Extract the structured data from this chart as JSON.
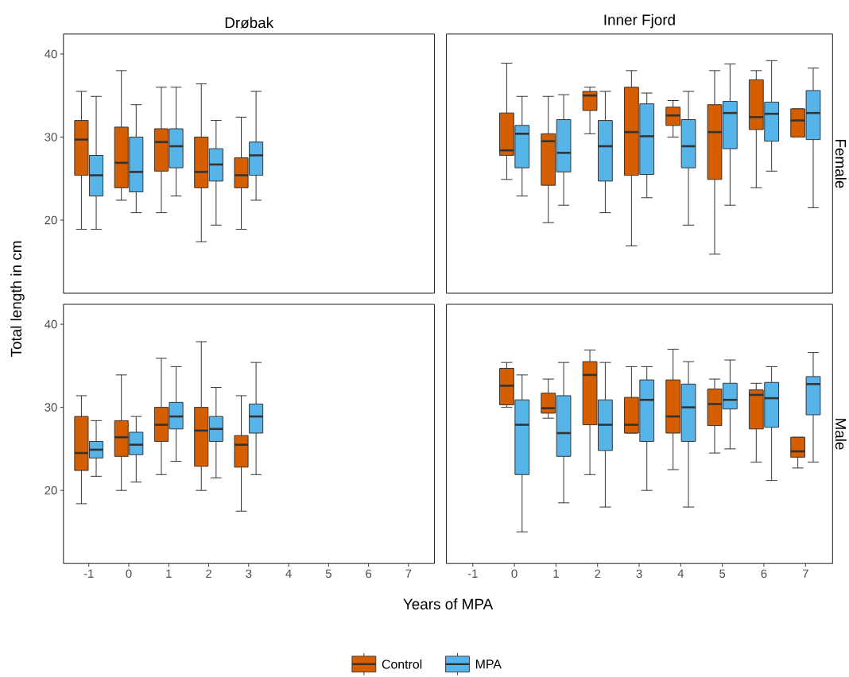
{
  "chart_data": [
    {
      "type": "box",
      "title": "Drøbak",
      "ylabel": "Total length in cm",
      "legend": "bottom",
      "categories": [
        "-1",
        "0",
        "1",
        "2",
        "3",
        "4",
        "5",
        "6",
        "7"
      ],
      "ylim": [
        11.2,
        42.4
      ],
      "yticks": [
        20,
        30,
        40
      ],
      "tick_labels": "y",
      "series": [
        {
          "name": "Control",
          "color": "#d55e00",
          "boxes": [
            {
              "low": 18.9,
              "q1": 25.4,
              "median": 29.7,
              "q3": 32.0,
              "high": 35.5
            },
            {
              "low": 22.4,
              "q1": 23.9,
              "median": 26.9,
              "q3": 31.2,
              "high": 38.0
            },
            {
              "low": 20.9,
              "q1": 25.9,
              "median": 29.4,
              "q3": 31.0,
              "high": 36.0
            },
            {
              "low": 17.4,
              "q1": 23.9,
              "median": 25.8,
              "q3": 30.0,
              "high": 36.4
            },
            {
              "low": 18.9,
              "q1": 23.9,
              "median": 25.4,
              "q3": 27.5,
              "high": 32.4
            },
            null,
            null,
            null,
            null
          ]
        },
        {
          "name": "MPA",
          "color": "#56b4e9",
          "boxes": [
            {
              "low": 18.9,
              "q1": 22.9,
              "median": 25.4,
              "q3": 27.8,
              "high": 34.9
            },
            {
              "low": 20.9,
              "q1": 23.4,
              "median": 25.8,
              "q3": 30.0,
              "high": 33.9
            },
            {
              "low": 22.9,
              "q1": 26.3,
              "median": 28.9,
              "q3": 31.0,
              "high": 36.0
            },
            {
              "low": 19.4,
              "q1": 24.7,
              "median": 26.7,
              "q3": 28.6,
              "high": 32.0
            },
            {
              "low": 22.4,
              "q1": 25.4,
              "median": 27.8,
              "q3": 29.4,
              "high": 35.5
            },
            null,
            null,
            null,
            null
          ]
        }
      ]
    },
    {
      "type": "box",
      "title": "Inner Fjord",
      "y2label": "Female",
      "categories": [
        "-1",
        "0",
        "1",
        "2",
        "3",
        "4",
        "5",
        "6",
        "7"
      ],
      "ylim": [
        11.2,
        42.4
      ],
      "tick_labels": false,
      "series": [
        {
          "color": "#d55e00",
          "boxes": [
            null,
            {
              "low": 24.9,
              "q1": 27.8,
              "median": 28.4,
              "q3": 32.9,
              "high": 38.9
            },
            {
              "low": 19.7,
              "q1": 24.2,
              "median": 29.5,
              "q3": 30.4,
              "high": 34.9
            },
            {
              "low": 30.4,
              "q1": 33.2,
              "median": 35.0,
              "q3": 35.5,
              "high": 36.0
            },
            {
              "low": 16.9,
              "q1": 25.4,
              "median": 30.6,
              "q3": 36.0,
              "high": 38.0
            },
            {
              "low": 30.0,
              "q1": 31.4,
              "median": 32.6,
              "q3": 33.6,
              "high": 34.4
            },
            {
              "low": 15.9,
              "q1": 24.9,
              "median": 30.6,
              "q3": 33.9,
              "high": 38.0
            },
            {
              "low": 23.9,
              "q1": 30.9,
              "median": 32.4,
              "q3": 36.9,
              "high": 38.0
            },
            {
              "low": 30.0,
              "q1": 30.0,
              "median": 32.0,
              "q3": 33.4,
              "high": 33.4
            }
          ]
        },
        {
          "color": "#56b4e9",
          "boxes": [
            null,
            {
              "low": 22.9,
              "q1": 26.3,
              "median": 30.4,
              "q3": 31.4,
              "high": 34.9
            },
            {
              "low": 21.8,
              "q1": 25.8,
              "median": 28.1,
              "q3": 32.1,
              "high": 35.1
            },
            {
              "low": 20.9,
              "q1": 24.7,
              "median": 28.9,
              "q3": 32.0,
              "high": 35.5
            },
            {
              "low": 22.7,
              "q1": 25.5,
              "median": 30.1,
              "q3": 34.0,
              "high": 35.3
            },
            {
              "low": 19.4,
              "q1": 26.3,
              "median": 28.9,
              "q3": 32.1,
              "high": 35.5
            },
            {
              "low": 21.8,
              "q1": 28.6,
              "median": 32.9,
              "q3": 34.3,
              "high": 38.8
            },
            {
              "low": 25.9,
              "q1": 29.5,
              "median": 32.8,
              "q3": 34.2,
              "high": 39.2
            },
            {
              "low": 21.5,
              "q1": 29.7,
              "median": 32.9,
              "q3": 35.6,
              "high": 38.3
            }
          ]
        }
      ]
    },
    {
      "type": "box",
      "xlabel": "Years of MPA",
      "categories": [
        "-1",
        "0",
        "1",
        "2",
        "3",
        "4",
        "5",
        "6",
        "7"
      ],
      "ylim": [
        11.2,
        42.4
      ],
      "yticks": [
        20,
        30,
        40
      ],
      "series": [
        {
          "color": "#d55e00",
          "boxes": [
            {
              "low": 18.4,
              "q1": 22.4,
              "median": 24.5,
              "q3": 28.9,
              "high": 31.4
            },
            {
              "low": 20.0,
              "q1": 24.1,
              "median": 26.4,
              "q3": 28.4,
              "high": 33.9
            },
            {
              "low": 21.9,
              "q1": 25.9,
              "median": 27.9,
              "q3": 30.0,
              "high": 35.9
            },
            {
              "low": 20.0,
              "q1": 22.9,
              "median": 27.2,
              "q3": 30.0,
              "high": 37.9
            },
            {
              "low": 17.5,
              "q1": 22.8,
              "median": 25.5,
              "q3": 26.6,
              "high": 31.4
            },
            null,
            null,
            null,
            null
          ]
        },
        {
          "color": "#56b4e9",
          "boxes": [
            {
              "low": 21.7,
              "q1": 23.9,
              "median": 24.9,
              "q3": 25.9,
              "high": 28.4
            },
            {
              "low": 21.0,
              "q1": 24.3,
              "median": 25.5,
              "q3": 27.0,
              "high": 28.9
            },
            {
              "low": 23.5,
              "q1": 27.4,
              "median": 28.9,
              "q3": 30.6,
              "high": 34.9
            },
            {
              "low": 21.5,
              "q1": 25.9,
              "median": 27.4,
              "q3": 28.9,
              "high": 32.4
            },
            {
              "low": 21.9,
              "q1": 26.9,
              "median": 28.9,
              "q3": 30.4,
              "high": 35.4
            },
            null,
            null,
            null,
            null
          ]
        }
      ]
    },
    {
      "type": "box",
      "y2label": "Male",
      "categories": [
        "-1",
        "0",
        "1",
        "2",
        "3",
        "4",
        "5",
        "6",
        "7"
      ],
      "ylim": [
        11.2,
        42.4
      ],
      "tick_labels": "x",
      "series": [
        {
          "color": "#d55e00",
          "boxes": [
            null,
            {
              "low": 30.0,
              "q1": 30.3,
              "median": 32.6,
              "q3": 34.7,
              "high": 35.4
            },
            {
              "low": 28.7,
              "q1": 29.3,
              "median": 29.9,
              "q3": 31.7,
              "high": 33.4
            },
            {
              "low": 21.9,
              "q1": 27.9,
              "median": 33.9,
              "q3": 35.5,
              "high": 36.9
            },
            {
              "low": 26.9,
              "q1": 26.9,
              "median": 27.9,
              "q3": 31.2,
              "high": 34.9
            },
            {
              "low": 22.5,
              "q1": 26.9,
              "median": 28.9,
              "q3": 33.3,
              "high": 37.0
            },
            {
              "low": 24.5,
              "q1": 27.8,
              "median": 30.4,
              "q3": 32.2,
              "high": 33.4
            },
            {
              "low": 23.4,
              "q1": 27.4,
              "median": 31.5,
              "q3": 32.1,
              "high": 32.9
            },
            {
              "low": 22.7,
              "q1": 24.0,
              "median": 24.7,
              "q3": 26.4,
              "high": 26.4
            }
          ]
        },
        {
          "color": "#56b4e9",
          "boxes": [
            null,
            {
              "low": 15.0,
              "q1": 21.9,
              "median": 27.9,
              "q3": 30.9,
              "high": 33.9
            },
            {
              "low": 18.5,
              "q1": 24.1,
              "median": 26.9,
              "q3": 31.4,
              "high": 35.4
            },
            {
              "low": 18.0,
              "q1": 24.8,
              "median": 27.9,
              "q3": 30.9,
              "high": 35.4
            },
            {
              "low": 20.0,
              "q1": 25.9,
              "median": 30.9,
              "q3": 33.3,
              "high": 34.9
            },
            {
              "low": 18.0,
              "q1": 25.9,
              "median": 30.0,
              "q3": 32.8,
              "high": 35.5
            },
            {
              "low": 25.0,
              "q1": 29.8,
              "median": 30.9,
              "q3": 32.9,
              "high": 35.7
            },
            {
              "low": 21.2,
              "q1": 27.6,
              "median": 31.1,
              "q3": 33.0,
              "high": 34.9
            },
            {
              "low": 23.4,
              "q1": 29.1,
              "median": 32.8,
              "q3": 33.7,
              "high": 36.6
            }
          ]
        }
      ]
    }
  ]
}
